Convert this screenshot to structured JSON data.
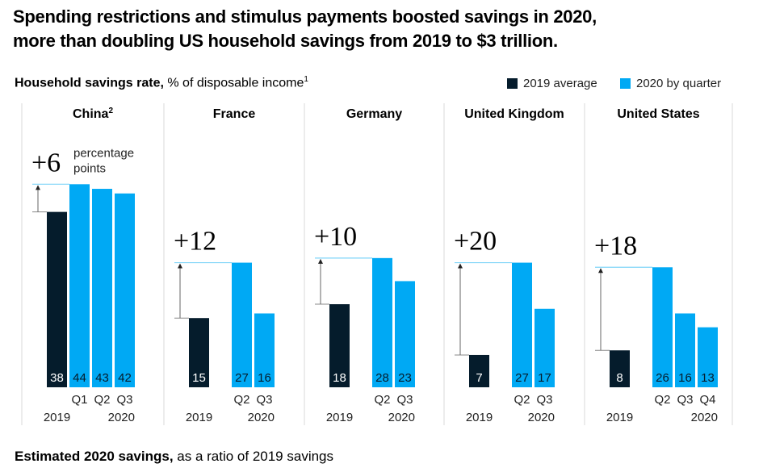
{
  "title_line1": "Spending restrictions and stimulus payments boosted savings in 2020,",
  "title_line2": "more than doubling US household savings from 2019 to $3 trillion.",
  "subtitle_bold": "Household savings rate,",
  "subtitle_rest": " % of disposable income",
  "subtitle_footnote": "1",
  "legend": [
    {
      "label": "2019 average",
      "color": "#051c2c"
    },
    {
      "label": "2020 by quarter",
      "color": "#00a9f4"
    }
  ],
  "footer_bold": "Estimated 2020 savings,",
  "footer_rest": " as a ratio of 2019 savings",
  "colors": {
    "dark": "#051c2c",
    "blue": "#00a9f4",
    "divider": "#d9d9d9",
    "ref_line": "#7fd4f8",
    "arrow": "#666666"
  },
  "chart_data": {
    "type": "bar",
    "title": "Household savings rate, % of disposable income",
    "ylabel": "% of disposable income",
    "ylim": [
      0,
      44
    ],
    "grid": false,
    "legend_position": "top-right",
    "panels": [
      {
        "country": "China",
        "footnote": "2",
        "change": "+6",
        "change_unit": "percentage points",
        "baseline_label": "2019",
        "baseline_value": 38,
        "quarter_year": "2020",
        "quarters": [
          {
            "q": "Q1",
            "value": 44
          },
          {
            "q": "Q2",
            "value": 43
          },
          {
            "q": "Q3",
            "value": 42
          }
        ]
      },
      {
        "country": "France",
        "footnote": "",
        "change": "+12",
        "change_unit": "",
        "baseline_label": "2019",
        "baseline_value": 15,
        "quarter_year": "2020",
        "quarters": [
          {
            "q": "Q2",
            "value": 27
          },
          {
            "q": "Q3",
            "value": 16
          }
        ]
      },
      {
        "country": "Germany",
        "footnote": "",
        "change": "+10",
        "change_unit": "",
        "baseline_label": "2019",
        "baseline_value": 18,
        "quarter_year": "2020",
        "quarters": [
          {
            "q": "Q2",
            "value": 28
          },
          {
            "q": "Q3",
            "value": 23
          }
        ]
      },
      {
        "country": "United Kingdom",
        "footnote": "",
        "change": "+20",
        "change_unit": "",
        "baseline_label": "2019",
        "baseline_value": 7,
        "quarter_year": "2020",
        "quarters": [
          {
            "q": "Q2",
            "value": 27
          },
          {
            "q": "Q3",
            "value": 17
          }
        ]
      },
      {
        "country": "United States",
        "footnote": "",
        "change": "+18",
        "change_unit": "",
        "baseline_label": "2019",
        "baseline_value": 8,
        "quarter_year": "2020",
        "quarters": [
          {
            "q": "Q2",
            "value": 26
          },
          {
            "q": "Q3",
            "value": 16
          },
          {
            "q": "Q4",
            "value": 13
          }
        ]
      }
    ]
  }
}
